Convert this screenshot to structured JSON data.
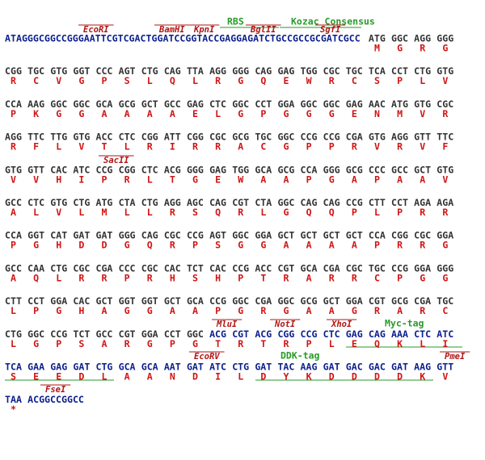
{
  "rows": [
    {
      "segments": [
        {
          "color": "#0b1f8c",
          "codons": [
            "ATAGGGCGGCCGGGAATTCGTCGACTGGATCCGGTACCGAGGAGATCTGCCGCCGCGATCGCC"
          ],
          "aa": [
            null
          ]
        },
        {
          "color": "#333333",
          "codons": [
            "ATG",
            "GGC",
            "AGG",
            "GGG"
          ],
          "aa": [
            "M",
            "G",
            "R",
            "G"
          ]
        }
      ],
      "annotations": [
        {
          "label": "EcoRI",
          "color": "#b01515"
        },
        {
          "label": "BamHI",
          "color": "#b01515"
        },
        {
          "label": "KpnI",
          "color": "#b01515"
        },
        {
          "label": "BglII",
          "color": "#b01515"
        },
        {
          "label": "SgfI",
          "color": "#b01515"
        },
        {
          "label": "RBS",
          "color": "#2a9a2a"
        },
        {
          "label": "Kozac Consensus",
          "color": "#2a9a2a"
        }
      ]
    },
    {
      "segments": [
        {
          "color": "#333333",
          "codons": [
            "CGG",
            "TGC",
            "GTG",
            "GGT",
            "CCC",
            "AGT",
            "CTG",
            "CAG",
            "TTA",
            "AGG",
            "GGG",
            "CAG",
            "GAG",
            "TGG",
            "CGC",
            "TGC",
            "TCA",
            "CCT",
            "CTG",
            "GTG"
          ],
          "aa": [
            "R",
            "C",
            "V",
            "G",
            "P",
            "S",
            "L",
            "Q",
            "L",
            "R",
            "G",
            "Q",
            "E",
            "W",
            "R",
            "C",
            "S",
            "P",
            "L",
            "V"
          ]
        }
      ],
      "annotations": []
    },
    {
      "segments": [
        {
          "color": "#333333",
          "codons": [
            "CCA",
            "AAG",
            "GGC",
            "GGC",
            "GCA",
            "GCG",
            "GCT",
            "GCC",
            "GAG",
            "CTC",
            "GGC",
            "CCT",
            "GGA",
            "GGC",
            "GGC",
            "GAG",
            "AAC",
            "ATG",
            "GTG",
            "CGC"
          ],
          "aa": [
            "P",
            "K",
            "G",
            "G",
            "A",
            "A",
            "A",
            "A",
            "E",
            "L",
            "G",
            "P",
            "G",
            "G",
            "G",
            "E",
            "N",
            "M",
            "V",
            "R"
          ]
        }
      ],
      "annotations": []
    },
    {
      "segments": [
        {
          "color": "#333333",
          "codons": [
            "AGG",
            "TTC",
            "TTG",
            "GTG",
            "ACC",
            "CTC",
            "CGG",
            "ATT",
            "CGG",
            "CGC",
            "GCG",
            "TGC",
            "GGC",
            "CCG",
            "CCG",
            "CGA",
            "GTG",
            "AGG",
            "GTT",
            "TTC"
          ],
          "aa": [
            "R",
            "F",
            "L",
            "V",
            "T",
            "L",
            "R",
            "I",
            "R",
            "R",
            "A",
            "C",
            "G",
            "P",
            "P",
            "R",
            "V",
            "R",
            "V",
            "F"
          ]
        }
      ],
      "annotations": []
    },
    {
      "segments": [
        {
          "color": "#333333",
          "codons": [
            "GTG",
            "GTT",
            "CAC",
            "ATC",
            "CCG",
            "CGG",
            "CTC",
            "ACG",
            "GGG",
            "GAG",
            "TGG",
            "GCA",
            "GCG",
            "CCA",
            "GGG",
            "GCG",
            "CCC",
            "GCC",
            "GCT",
            "GTG"
          ],
          "aa": [
            "V",
            "V",
            "H",
            "I",
            "P",
            "R",
            "L",
            "T",
            "G",
            "E",
            "W",
            "A",
            "A",
            "P",
            "G",
            "A",
            "P",
            "A",
            "A",
            "V"
          ]
        }
      ],
      "annotations": [
        {
          "label": "SacII",
          "color": "#b01515"
        }
      ]
    },
    {
      "segments": [
        {
          "color": "#333333",
          "codons": [
            "GCC",
            "CTC",
            "GTG",
            "CTG",
            "ATG",
            "CTA",
            "CTG",
            "AGG",
            "AGC",
            "CAG",
            "CGT",
            "CTA",
            "GGC",
            "CAG",
            "CAG",
            "CCG",
            "CTT",
            "CCT",
            "AGA",
            "AGA"
          ],
          "aa": [
            "A",
            "L",
            "V",
            "L",
            "M",
            "L",
            "L",
            "R",
            "S",
            "Q",
            "R",
            "L",
            "G",
            "Q",
            "Q",
            "P",
            "L",
            "P",
            "R",
            "R"
          ]
        }
      ],
      "annotations": []
    },
    {
      "segments": [
        {
          "color": "#333333",
          "codons": [
            "CCA",
            "GGT",
            "CAT",
            "GAT",
            "GAT",
            "GGG",
            "CAG",
            "CGC",
            "CCG",
            "AGT",
            "GGC",
            "GGA",
            "GCT",
            "GCT",
            "GCT",
            "GCT",
            "CCA",
            "CGG",
            "CGC",
            "GGA"
          ],
          "aa": [
            "P",
            "G",
            "H",
            "D",
            "D",
            "G",
            "Q",
            "R",
            "P",
            "S",
            "G",
            "G",
            "A",
            "A",
            "A",
            "A",
            "P",
            "R",
            "R",
            "G"
          ]
        }
      ],
      "annotations": []
    },
    {
      "segments": [
        {
          "color": "#333333",
          "codons": [
            "GCC",
            "CAA",
            "CTG",
            "CGC",
            "CGA",
            "CCC",
            "CGC",
            "CAC",
            "TCT",
            "CAC",
            "CCG",
            "ACC",
            "CGT",
            "GCA",
            "CGA",
            "CGC",
            "TGC",
            "CCG",
            "GGA",
            "GGG"
          ],
          "aa": [
            "A",
            "Q",
            "L",
            "R",
            "R",
            "P",
            "R",
            "H",
            "S",
            "H",
            "P",
            "T",
            "R",
            "A",
            "R",
            "R",
            "C",
            "P",
            "G",
            "G"
          ]
        }
      ],
      "annotations": []
    },
    {
      "segments": [
        {
          "color": "#333333",
          "codons": [
            "CTT",
            "CCT",
            "GGA",
            "CAC",
            "GCT",
            "GGT",
            "GGT",
            "GCT",
            "GCA",
            "CCG",
            "GGC",
            "CGA",
            "GGC",
            "GCG",
            "GCT",
            "GGA",
            "CGT",
            "GCG",
            "CGA",
            "TGC"
          ],
          "aa": [
            "L",
            "P",
            "G",
            "H",
            "A",
            "G",
            "G",
            "A",
            "A",
            "P",
            "G",
            "R",
            "G",
            "A",
            "A",
            "G",
            "R",
            "A",
            "R",
            "C"
          ]
        }
      ],
      "annotations": []
    },
    {
      "segments": [
        {
          "color": "#333333",
          "codons": [
            "CTG",
            "GGC",
            "CCG",
            "TCT",
            "GCC",
            "CGT",
            "GGA",
            "CCT",
            "GGC"
          ],
          "aa": [
            "L",
            "G",
            "P",
            "S",
            "A",
            "R",
            "G",
            "P",
            "G"
          ]
        },
        {
          "color": "#0b1f8c",
          "codons": [
            "ACG",
            "CGT",
            "ACG",
            "CGG",
            "CCG",
            "CTC",
            "GAG",
            "CAG",
            "AAA",
            "CTC",
            "ATC"
          ],
          "aa": [
            "T",
            "R",
            "T",
            "R",
            "P",
            "L",
            "E",
            "Q",
            "K",
            "L",
            "I"
          ]
        }
      ],
      "annotations": [
        {
          "label": "MluI",
          "color": "#b01515"
        },
        {
          "label": "NotI",
          "color": "#b01515"
        },
        {
          "label": "XhoI",
          "color": "#b01515"
        },
        {
          "label": "Myc-tag",
          "color": "#2a9a2a"
        }
      ]
    },
    {
      "segments": [
        {
          "color": "#0b1f8c",
          "codons": [
            "TCA",
            "GAA",
            "GAG",
            "GAT",
            "CTG",
            "GCA",
            "GCA",
            "AAT",
            "GAT",
            "ATC",
            "CTG",
            "GAT",
            "TAC",
            "AAG",
            "GAT",
            "GAC",
            "GAC",
            "GAT",
            "AAG",
            "GTT"
          ],
          "aa": [
            "S",
            "E",
            "E",
            "D",
            "L",
            "A",
            "A",
            "N",
            "D",
            "I",
            "L",
            "D",
            "Y",
            "K",
            "D",
            "D",
            "D",
            "D",
            "K",
            "V"
          ]
        }
      ],
      "annotations": [
        {
          "label": "EcoRV",
          "color": "#b01515"
        },
        {
          "label": "DDK-tag",
          "color": "#2a9a2a"
        },
        {
          "label": "PmeI",
          "color": "#b01515"
        }
      ]
    },
    {
      "segments": [
        {
          "color": "#0b1f8c",
          "codons": [
            "TAA",
            "ACGGCCGGCC"
          ],
          "aa": [
            "*",
            null
          ]
        }
      ],
      "annotations": [
        {
          "label": "FseI",
          "color": "#b01515"
        }
      ]
    }
  ]
}
